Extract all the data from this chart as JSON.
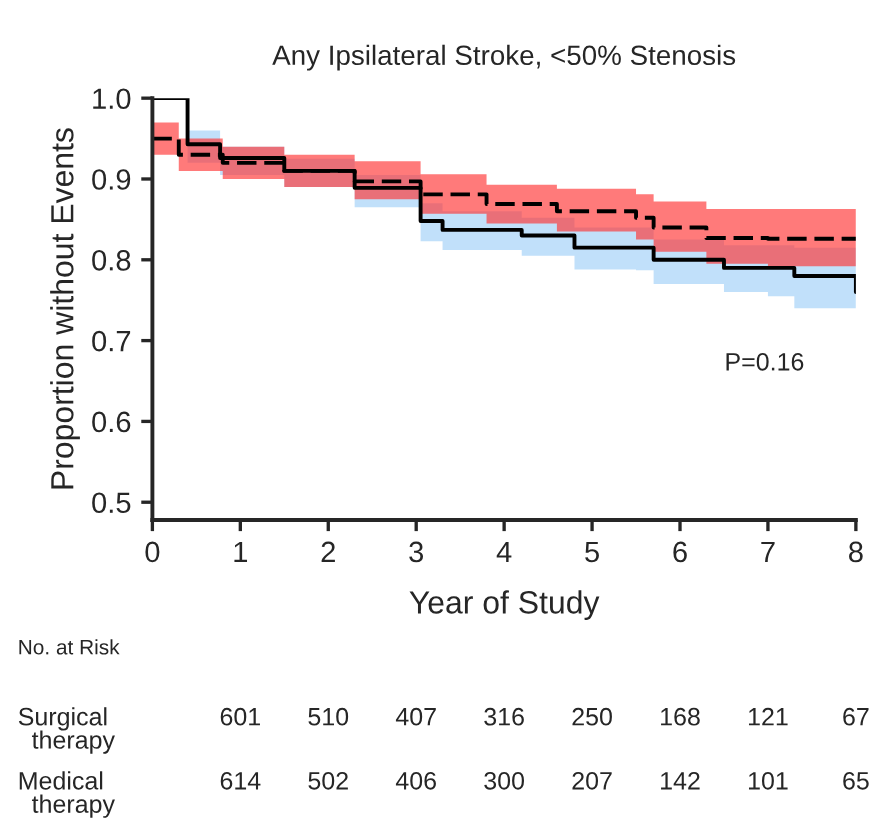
{
  "chart_data": {
    "type": "step",
    "title": "Any Ipsilateral Stroke, <50% Stenosis",
    "xlabel": "Year of Study",
    "ylabel": "Proportion without Events",
    "xlim": [
      0,
      8
    ],
    "xticks": [
      0,
      1,
      2,
      3,
      4,
      5,
      6,
      7,
      8
    ],
    "ylim": [
      0.478,
      1.0
    ],
    "yticks": [
      {
        "value": 0.5,
        "label": "0.5"
      },
      {
        "value": 0.6,
        "label": "0.6"
      },
      {
        "value": 0.7,
        "label": "0.7"
      },
      {
        "value": 0.8,
        "label": "0.8"
      },
      {
        "value": 0.9,
        "label": "0.9"
      },
      {
        "value": 1.0,
        "label": "1.0"
      }
    ],
    "grid": false,
    "series": [
      {
        "type": "area",
        "color": "#9fd0f7",
        "x": [
          0,
          0.4,
          0.77,
          1.5,
          2.3,
          3.05,
          3.3,
          4.2,
          4.8,
          5.5,
          5.7,
          6.5,
          7,
          7.3,
          8
        ],
        "values": [
          null,
          null,
          null,
          null,
          null,
          null,
          null,
          null,
          null,
          null,
          null,
          null,
          null,
          null,
          null
        ],
        "upper": [
          1.0,
          0.96,
          0.94,
          0.925,
          0.905,
          0.87,
          0.86,
          0.852,
          0.84,
          0.84,
          0.825,
          0.818,
          0.818,
          0.815,
          0.815
        ],
        "lower": [
          1.0,
          0.92,
          0.905,
          0.89,
          0.865,
          0.823,
          0.812,
          0.805,
          0.788,
          0.787,
          0.77,
          0.76,
          0.755,
          0.74,
          0.71
        ]
      },
      {
        "type": "area",
        "color": "#ff3333",
        "x": [
          0,
          0.3,
          0.8,
          1.5,
          2.3,
          3.05,
          3.8,
          4.6,
          5.5,
          5.7,
          6.3,
          7,
          8
        ],
        "values": [
          null,
          null,
          null,
          null,
          null,
          null,
          null,
          null,
          null,
          null,
          null,
          null,
          null
        ],
        "upper": [
          0.97,
          0.95,
          0.94,
          0.93,
          0.922,
          0.906,
          0.893,
          0.888,
          0.881,
          0.872,
          0.863,
          0.863,
          0.863
        ],
        "lower": [
          0.93,
          0.91,
          0.9,
          0.89,
          0.875,
          0.857,
          0.845,
          0.835,
          0.825,
          0.81,
          0.795,
          0.792,
          0.79
        ]
      },
      {
        "color": "#000000",
        "line_style": "dashed",
        "x": [
          0,
          0.3,
          0.8,
          1.5,
          2.3,
          3.05,
          3.8,
          4.6,
          5.5,
          5.7,
          6.3,
          7,
          8
        ],
        "values": [
          0.95,
          0.93,
          0.92,
          0.91,
          0.897,
          0.881,
          0.869,
          0.86,
          0.852,
          0.84,
          0.827,
          0.826,
          0.826
        ]
      },
      {
        "color": "#000000",
        "line_style": "solid",
        "x": [
          0,
          0.4,
          0.77,
          1.5,
          2.3,
          3.05,
          3.3,
          4.2,
          4.8,
          5.5,
          5.7,
          6.5,
          7,
          7.3,
          8
        ],
        "values": [
          1.0,
          0.943,
          0.926,
          0.91,
          0.889,
          0.848,
          0.837,
          0.83,
          0.815,
          0.815,
          0.8,
          0.79,
          0.79,
          0.78,
          0.76
        ]
      }
    ],
    "annotations": [
      "P=0.16",
      "No. at Risk",
      "Surgical\n  therapy",
      "601",
      "510",
      "407",
      "316",
      "250",
      "168",
      "121",
      "67",
      "Medical\n  therapy",
      "614",
      "502",
      "406",
      "300",
      "207",
      "142",
      "101",
      "65"
    ]
  }
}
